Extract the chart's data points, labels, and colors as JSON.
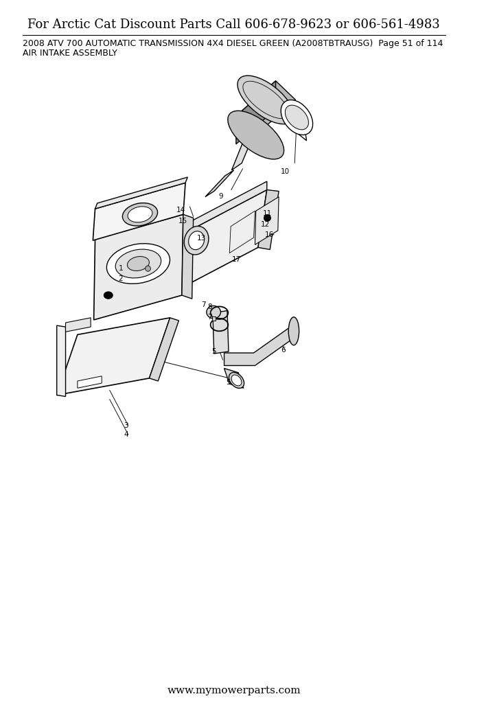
{
  "title_top": "For Arctic Cat Discount Parts Call 606-678-9623 or 606-561-4983",
  "subtitle": "2008 ATV 700 AUTOMATIC TRANSMISSION 4X4 DIESEL GREEN (A2008TBTRAUSG)  Page 51 of 114",
  "subtitle2": "AIR INTAKE ASSEMBLY",
  "footer": "www.mymowerparts.com",
  "bg_color": "#ffffff",
  "title_fontsize": 13,
  "subtitle_fontsize": 9,
  "footer_fontsize": 11
}
